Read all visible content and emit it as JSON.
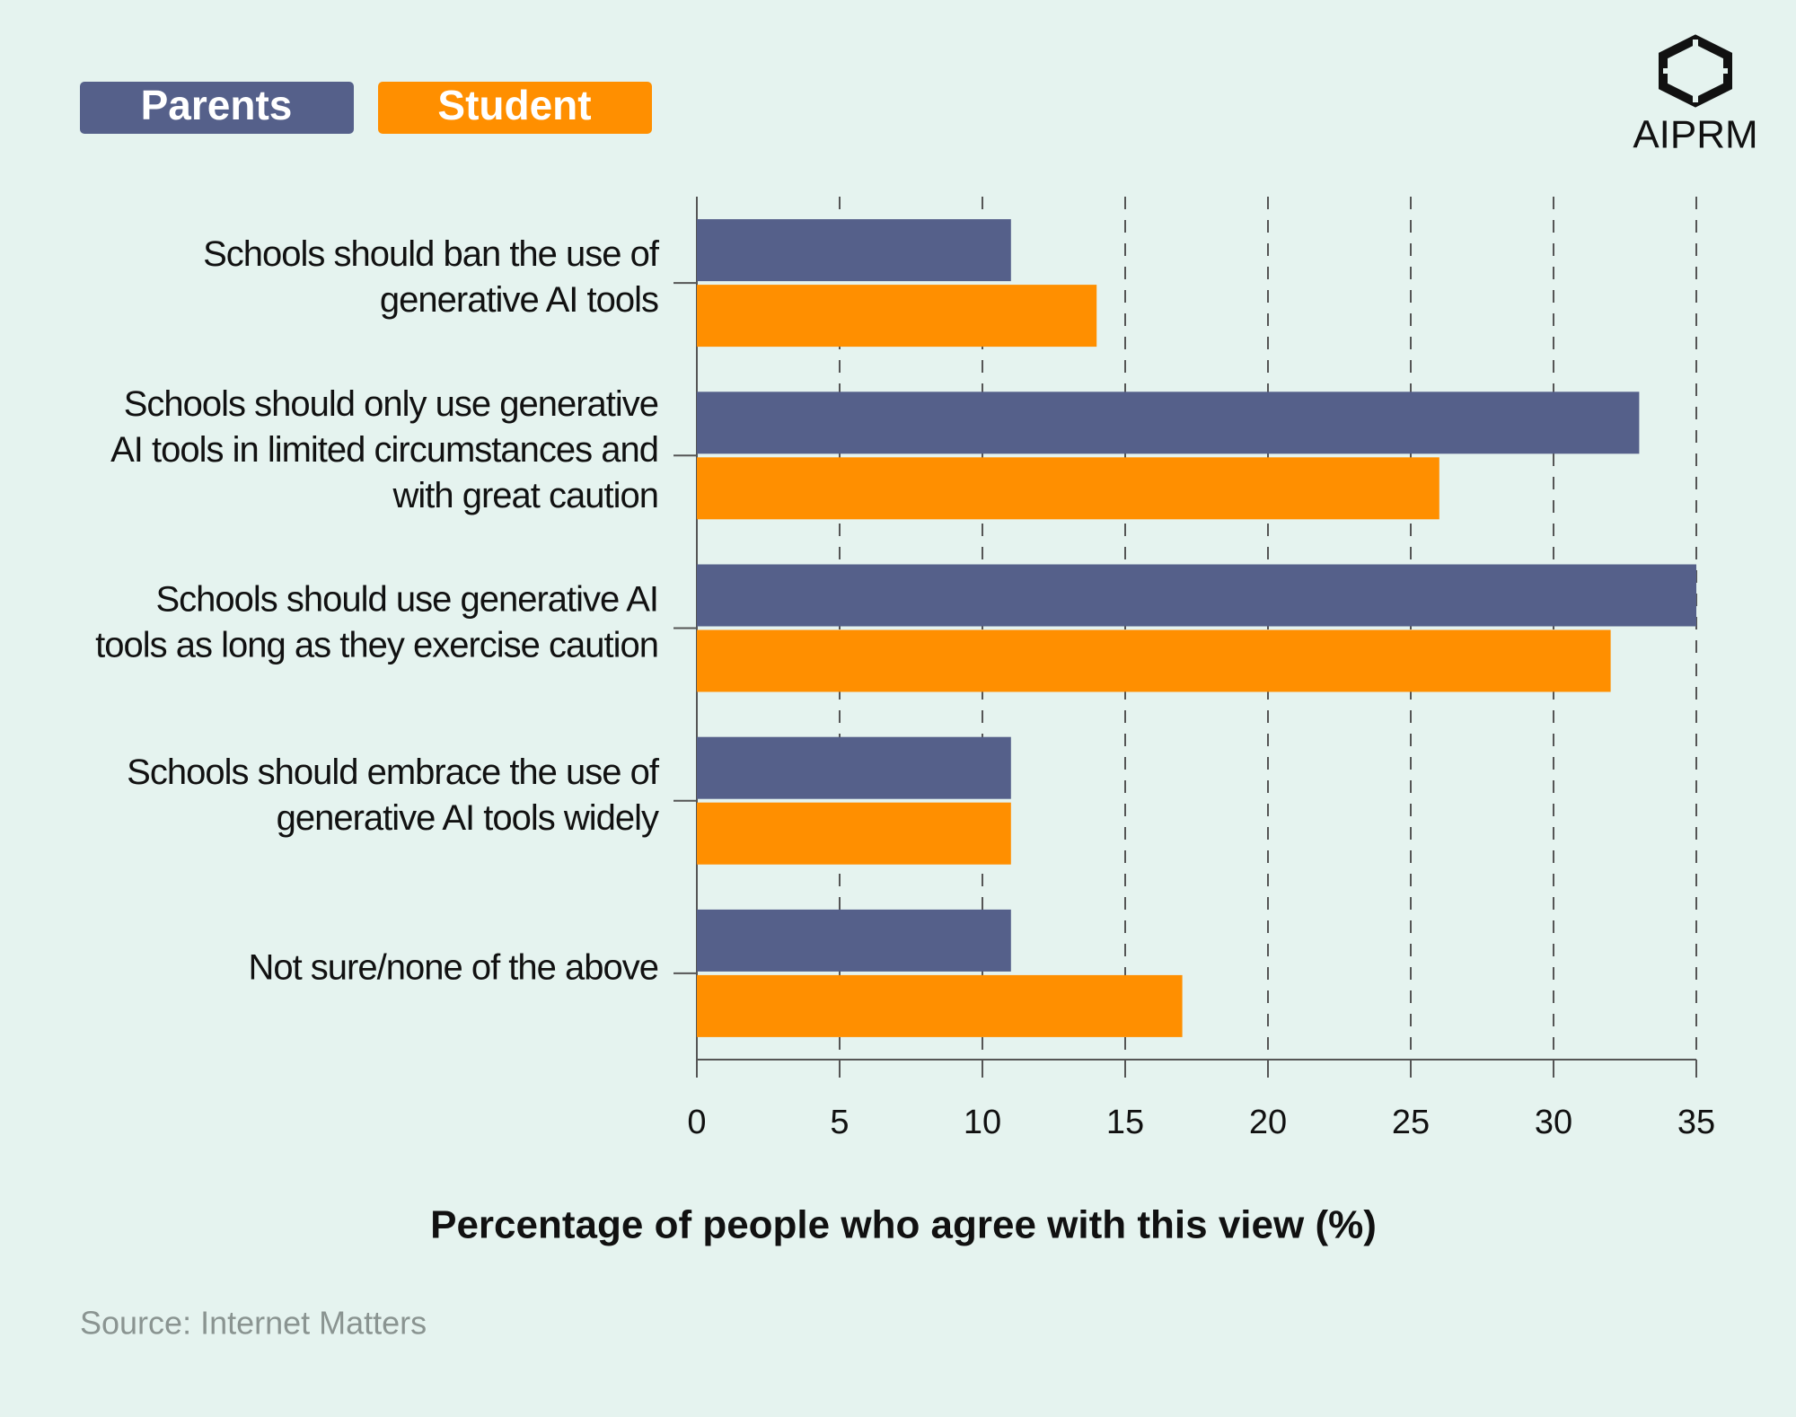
{
  "brand": "AIPRM",
  "source": "Source: Internet Matters",
  "chart_data": {
    "type": "hbar",
    "x_label": "Percentage of people who agree with this view (%)",
    "categories": [
      [
        "Schools should ban the use of",
        "generative AI tools"
      ],
      [
        "Schools should only use generative",
        "AI tools in limited circumstances and",
        "with great caution"
      ],
      [
        "Schools should use generative AI",
        "tools as long as they exercise caution"
      ],
      [
        "Schools should embrace the use of",
        "generative AI tools widely"
      ],
      [
        "Not sure/none of the above"
      ]
    ],
    "series": [
      {
        "name": "Parents",
        "color": "#55608a",
        "values": [
          11,
          33,
          35,
          11,
          11
        ]
      },
      {
        "name": "Student",
        "color": "#ff8f00",
        "values": [
          14,
          26,
          32,
          11,
          17
        ]
      }
    ],
    "xlim": [
      0,
      35
    ],
    "xticks": [
      0,
      5,
      10,
      15,
      20,
      25,
      30,
      35
    ],
    "grid": true,
    "legend": "top-left"
  }
}
